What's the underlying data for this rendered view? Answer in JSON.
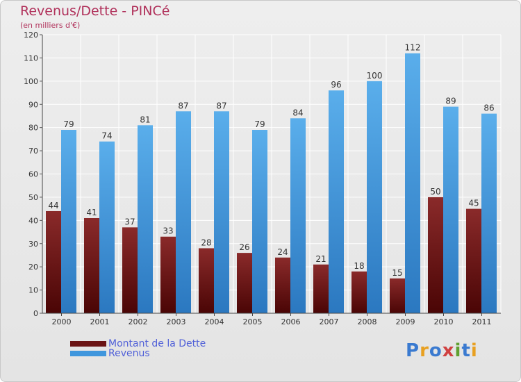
{
  "title": "Revenus/Dette - PINCé",
  "subtitle": "(en milliers d'€)",
  "logo": {
    "text": "Proxiti",
    "colors": [
      "#3a7ad0",
      "#e8a020",
      "#3a7ad0",
      "#d04040",
      "#60a030",
      "#3a7ad0",
      "#e8a020"
    ]
  },
  "chart_data": {
    "type": "bar",
    "title": "Revenus/Dette - PINCé",
    "ylabel": "(en milliers d'€)",
    "xlabel": "",
    "ylim": [
      0,
      120
    ],
    "yticks": [
      0,
      10,
      20,
      30,
      40,
      50,
      60,
      70,
      80,
      90,
      100,
      110,
      120
    ],
    "grid": true,
    "legend_position": "bottom-left",
    "categories": [
      "2000",
      "2001",
      "2002",
      "2003",
      "2004",
      "2005",
      "2006",
      "2007",
      "2008",
      "2009",
      "2010",
      "2011"
    ],
    "series": [
      {
        "name": "Montant de la Dette",
        "color": "#6b1414",
        "values": [
          44,
          41,
          37,
          33,
          28,
          26,
          24,
          21,
          18,
          15,
          50,
          45
        ]
      },
      {
        "name": "Revenus",
        "color": "#3f96dd",
        "values": [
          79,
          74,
          81,
          87,
          87,
          79,
          84,
          96,
          100,
          112,
          89,
          86
        ]
      }
    ]
  }
}
